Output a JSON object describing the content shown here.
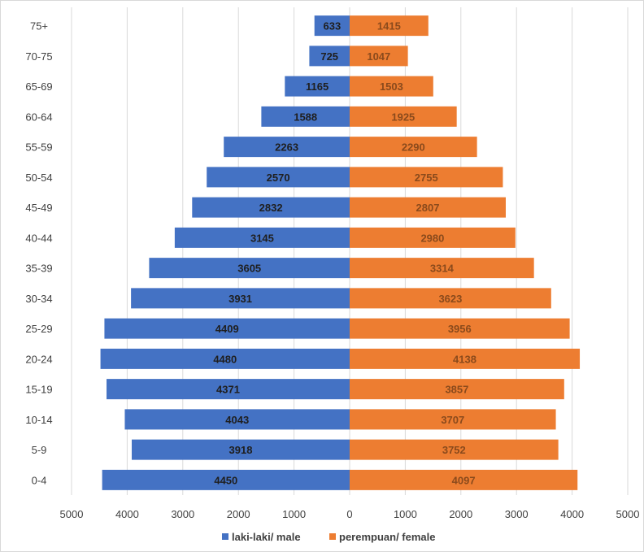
{
  "chart_data": {
    "type": "bar",
    "orientation": "horizontal-diverging",
    "title": "",
    "categories": [
      "0-4",
      "5-9",
      "10-14",
      "15-19",
      "20-24",
      "25-29",
      "30-34",
      "35-39",
      "40-44",
      "45-49",
      "50-54",
      "55-59",
      "60-64",
      "65-69",
      "70-75",
      "75+"
    ],
    "series": [
      {
        "name": "laki-laki/ male",
        "color": "#4472c4",
        "values": [
          4450,
          3918,
          4043,
          4371,
          4480,
          4409,
          3931,
          3605,
          3145,
          2832,
          2570,
          2263,
          1588,
          1165,
          725,
          633
        ]
      },
      {
        "name": "perempuan/ female",
        "color": "#ed7d31",
        "values": [
          4097,
          3752,
          3707,
          3857,
          4138,
          3956,
          3623,
          3314,
          2980,
          2807,
          2755,
          2290,
          1925,
          1503,
          1047,
          1415
        ]
      }
    ],
    "x_ticks": [
      "5000",
      "4000",
      "3000",
      "2000",
      "1000",
      "0",
      "1000",
      "2000",
      "3000",
      "4000",
      "5000"
    ],
    "xlim": [
      -5000,
      5000
    ],
    "grid": "vertical",
    "legend": "bottom",
    "data_labels": true
  }
}
